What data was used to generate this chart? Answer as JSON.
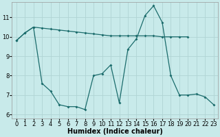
{
  "bg_color": "#c8eaea",
  "grid_color": "#b0d4d4",
  "line_color": "#1a6b6b",
  "line1_x": [
    0,
    1,
    2,
    3,
    4,
    5,
    6,
    7,
    8,
    9,
    10,
    11,
    12,
    13,
    14,
    15,
    16,
    17,
    18,
    19,
    20
  ],
  "line1_y": [
    9.8,
    10.2,
    10.5,
    10.45,
    10.4,
    10.35,
    10.3,
    10.25,
    10.2,
    10.15,
    10.1,
    10.05,
    10.05,
    10.05,
    10.05,
    10.05,
    10.05,
    10.0,
    10.0,
    10.0,
    10.0
  ],
  "line2_x": [
    0,
    1,
    2,
    3,
    4,
    5,
    6,
    7,
    8,
    9,
    10,
    11,
    12,
    13,
    14,
    15,
    16,
    17,
    18,
    19,
    20,
    21,
    22,
    23
  ],
  "line2_y": [
    9.8,
    10.2,
    10.5,
    7.6,
    7.2,
    6.5,
    6.4,
    6.4,
    6.25,
    8.0,
    8.1,
    8.55,
    6.6,
    9.35,
    9.9,
    11.1,
    11.6,
    10.75,
    8.0,
    7.0,
    7.0,
    7.05,
    6.9,
    6.5
  ],
  "xlabel": "Humidex (Indice chaleur)",
  "xlim": [
    -0.5,
    23.5
  ],
  "ylim": [
    5.8,
    11.8
  ],
  "yticks": [
    6,
    7,
    8,
    9,
    10,
    11
  ],
  "xticks": [
    0,
    1,
    2,
    3,
    4,
    5,
    6,
    7,
    8,
    9,
    10,
    11,
    12,
    13,
    14,
    15,
    16,
    17,
    18,
    19,
    20,
    21,
    22,
    23
  ],
  "xlabel_fontsize": 7.0,
  "tick_fontsize": 6.0
}
